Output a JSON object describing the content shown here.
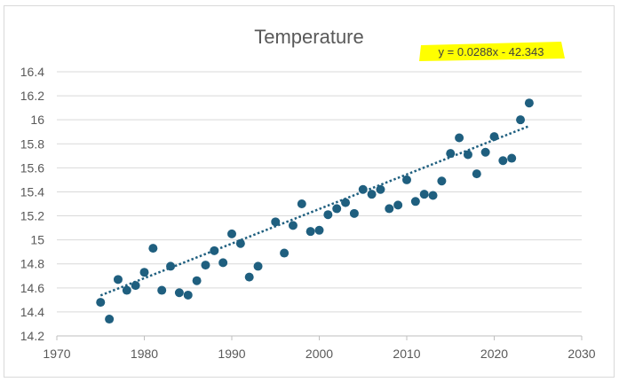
{
  "chart_data": {
    "type": "scatter",
    "title": "Temperature",
    "xlabel": "",
    "ylabel": "",
    "xlim": [
      1970,
      2030
    ],
    "ylim": [
      14.2,
      16.4
    ],
    "x_ticks": [
      1970,
      1980,
      1990,
      2000,
      2010,
      2020,
      2030
    ],
    "y_ticks": [
      14.2,
      14.4,
      14.6,
      14.8,
      15,
      15.2,
      15.4,
      15.6,
      15.8,
      16,
      16.2,
      16.4
    ],
    "y_tick_labels": [
      "14.2",
      "14.4",
      "14.6",
      "14.8",
      "15",
      "15.2",
      "15.4",
      "15.6",
      "15.8",
      "16",
      "16.2",
      "16.4"
    ],
    "grid": "horizontal",
    "legend": "none",
    "marker_color": "#1f5f7f",
    "trendline": {
      "type": "linear",
      "style": "dotted",
      "slope": 0.0288,
      "intercept": -42.343,
      "x_range": [
        1975,
        2024
      ],
      "color": "#1f5f7f",
      "equation": "y = 0.0288x - 42.343",
      "highlight_color": "#ffff00"
    },
    "series": [
      {
        "name": "Temperature",
        "points": [
          [
            1975,
            14.48
          ],
          [
            1976,
            14.34
          ],
          [
            1977,
            14.67
          ],
          [
            1978,
            14.58
          ],
          [
            1979,
            14.62
          ],
          [
            1980,
            14.73
          ],
          [
            1981,
            14.93
          ],
          [
            1982,
            14.58
          ],
          [
            1983,
            14.78
          ],
          [
            1984,
            14.56
          ],
          [
            1985,
            14.54
          ],
          [
            1986,
            14.66
          ],
          [
            1987,
            14.79
          ],
          [
            1988,
            14.91
          ],
          [
            1989,
            14.81
          ],
          [
            1990,
            15.05
          ],
          [
            1991,
            14.97
          ],
          [
            1992,
            14.69
          ],
          [
            1993,
            14.78
          ],
          [
            1995,
            15.15
          ],
          [
            1996,
            14.89
          ],
          [
            1997,
            15.12
          ],
          [
            1998,
            15.3
          ],
          [
            1999,
            15.07
          ],
          [
            2000,
            15.08
          ],
          [
            2001,
            15.21
          ],
          [
            2002,
            15.26
          ],
          [
            2003,
            15.31
          ],
          [
            2004,
            15.22
          ],
          [
            2005,
            15.42
          ],
          [
            2006,
            15.38
          ],
          [
            2007,
            15.42
          ],
          [
            2008,
            15.26
          ],
          [
            2009,
            15.29
          ],
          [
            2010,
            15.5
          ],
          [
            2011,
            15.32
          ],
          [
            2012,
            15.38
          ],
          [
            2013,
            15.37
          ],
          [
            2014,
            15.49
          ],
          [
            2015,
            15.72
          ],
          [
            2016,
            15.85
          ],
          [
            2017,
            15.71
          ],
          [
            2018,
            15.55
          ],
          [
            2019,
            15.73
          ],
          [
            2020,
            15.86
          ],
          [
            2021,
            15.66
          ],
          [
            2022,
            15.68
          ],
          [
            2023,
            16.0
          ],
          [
            2024,
            16.14
          ]
        ]
      }
    ]
  }
}
